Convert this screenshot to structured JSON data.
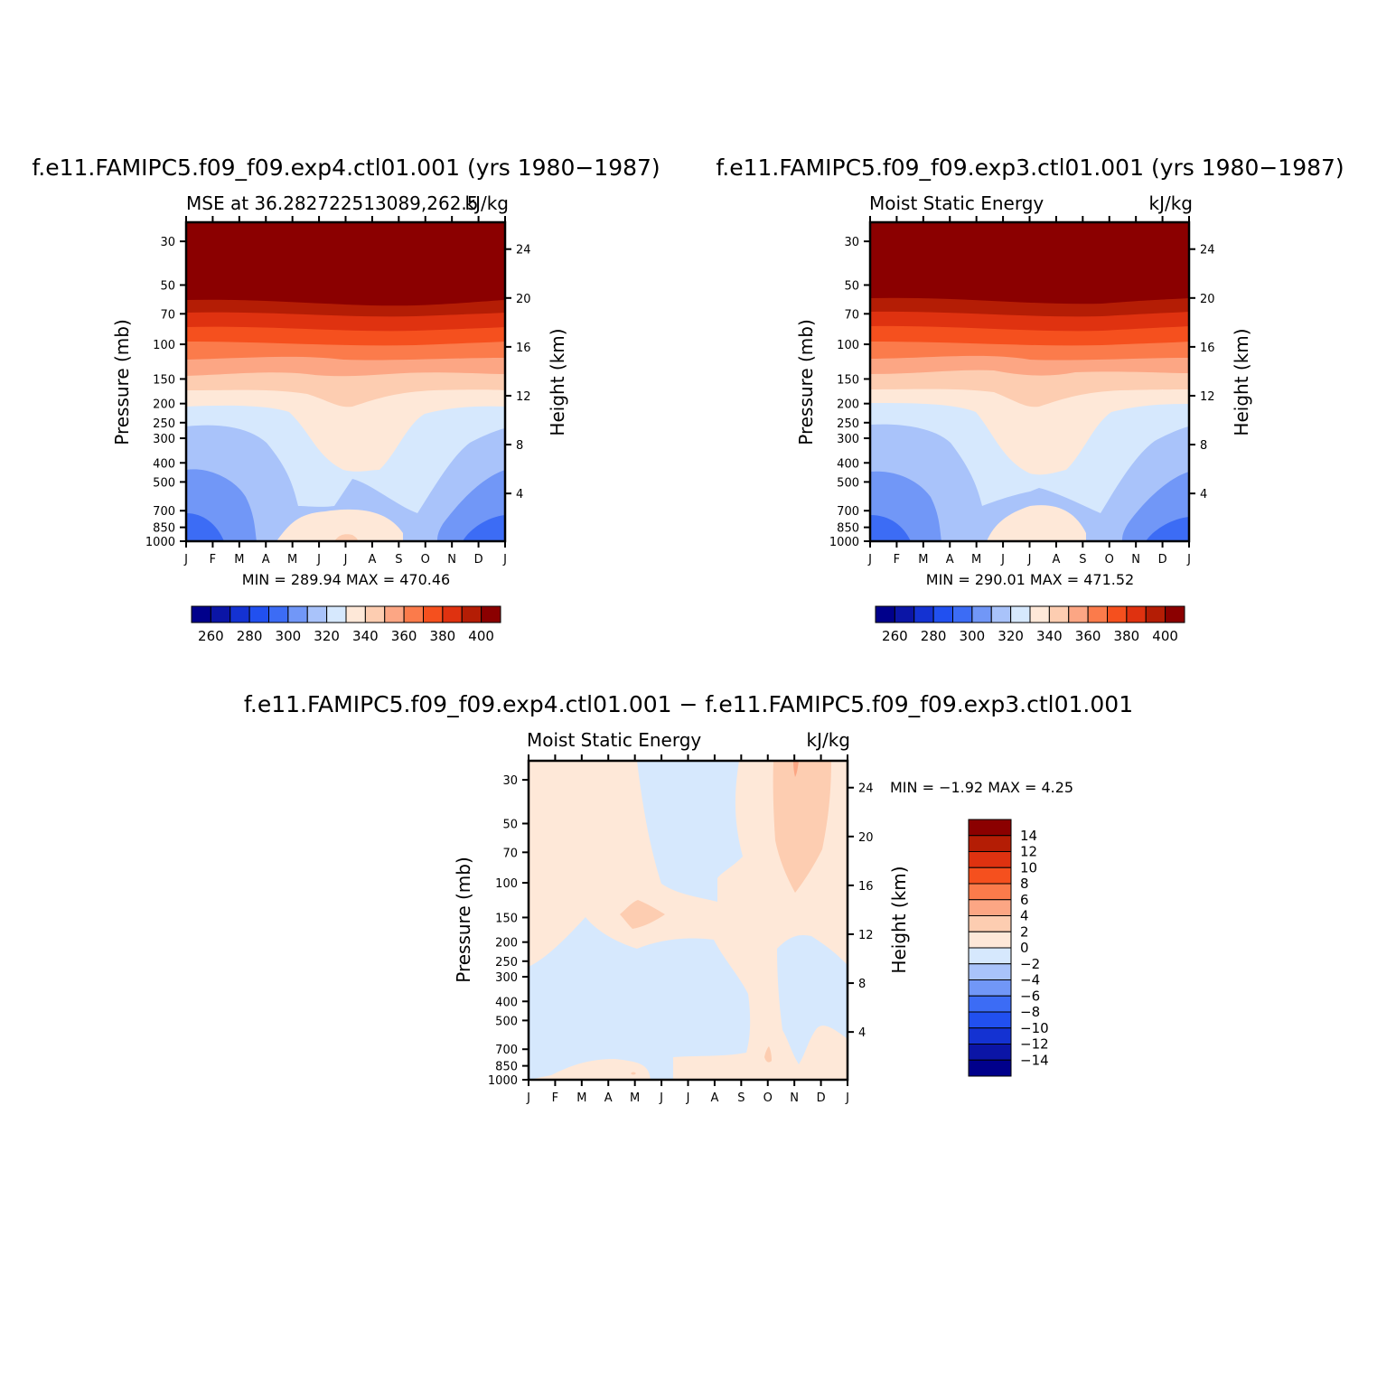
{
  "palette": {
    "absolute": [
      "#00008b",
      "#0b15a6",
      "#1432d2",
      "#2150f0",
      "#3c6cf5",
      "#7197f7",
      "#a9c3fa",
      "#d6e8fd",
      "#fee8d8",
      "#fdcdb1",
      "#fca684",
      "#fb7b4b",
      "#f5501e",
      "#df3210",
      "#b41d05",
      "#8b0000"
    ],
    "difference": [
      "#00008b",
      "#0b15a6",
      "#1432d2",
      "#2150f0",
      "#3c6cf5",
      "#7197f7",
      "#a9c3fa",
      "#d6e8fd",
      "#fee8d8",
      "#fdcdb1",
      "#fca684",
      "#fb7b4b",
      "#f5501e",
      "#df3210",
      "#b41d05",
      "#8b0000"
    ]
  },
  "chart_data": [
    {
      "type": "heatmap",
      "title": "f.e11.FAMIPC5.f09_f09.exp4.ctl01.001 (yrs 1980−1987)",
      "subtitle_left": "MSE at 36.282722513089,262.5",
      "subtitle_right": "kJ/kg",
      "ylabel": "Pressure (mb)",
      "ylabel_right": "Height (km)",
      "x_ticks": [
        "J",
        "F",
        "M",
        "A",
        "M",
        "J",
        "J",
        "A",
        "S",
        "O",
        "N",
        "D",
        "J"
      ],
      "y_ticks": [
        "30",
        "50",
        "70",
        "100",
        "150",
        "200",
        "250",
        "300",
        "400",
        "500",
        "700",
        "850",
        "1000"
      ],
      "y_ticks_right": [
        "24",
        "20",
        "16",
        "12",
        "8",
        "4"
      ],
      "stats": "MIN = 289.94  MAX = 470.46",
      "colorbar_labels": [
        "260",
        "280",
        "300",
        "320",
        "340",
        "360",
        "380",
        "400"
      ],
      "levels": [
        250,
        260,
        270,
        280,
        290,
        300,
        310,
        320,
        330,
        340,
        350,
        360,
        370,
        380,
        390,
        400
      ]
    },
    {
      "type": "heatmap",
      "title": "f.e11.FAMIPC5.f09_f09.exp3.ctl01.001 (yrs 1980−1987)",
      "subtitle_left": "Moist Static Energy",
      "subtitle_right": "kJ/kg",
      "ylabel": "Pressure (mb)",
      "ylabel_right": "Height (km)",
      "x_ticks": [
        "J",
        "F",
        "M",
        "A",
        "M",
        "J",
        "J",
        "A",
        "S",
        "O",
        "N",
        "D",
        "J"
      ],
      "y_ticks": [
        "30",
        "50",
        "70",
        "100",
        "150",
        "200",
        "250",
        "300",
        "400",
        "500",
        "700",
        "850",
        "1000"
      ],
      "y_ticks_right": [
        "24",
        "20",
        "16",
        "12",
        "8",
        "4"
      ],
      "stats": "MIN = 290.01  MAX = 471.52",
      "colorbar_labels": [
        "260",
        "280",
        "300",
        "320",
        "340",
        "360",
        "380",
        "400"
      ],
      "levels": [
        250,
        260,
        270,
        280,
        290,
        300,
        310,
        320,
        330,
        340,
        350,
        360,
        370,
        380,
        390,
        400
      ]
    },
    {
      "type": "heatmap",
      "title": "f.e11.FAMIPC5.f09_f09.exp4.ctl01.001 − f.e11.FAMIPC5.f09_f09.exp3.ctl01.001",
      "subtitle_left": "Moist Static Energy",
      "subtitle_right": "kJ/kg",
      "ylabel": "Pressure (mb)",
      "ylabel_right": "Height (km)",
      "x_ticks": [
        "J",
        "F",
        "M",
        "A",
        "M",
        "J",
        "J",
        "A",
        "S",
        "O",
        "N",
        "D",
        "J"
      ],
      "y_ticks": [
        "30",
        "50",
        "70",
        "100",
        "150",
        "200",
        "250",
        "300",
        "400",
        "500",
        "700",
        "850",
        "1000"
      ],
      "y_ticks_right": [
        "24",
        "20",
        "16",
        "12",
        "8",
        "4"
      ],
      "stats": "MIN =   −1.92  MAX =     4.25",
      "colorbar_labels": [
        "14",
        "12",
        "10",
        "8",
        "6",
        "4",
        "2",
        "0",
        "−2",
        "−4",
        "−6",
        "−8",
        "−10",
        "−12",
        "−14"
      ],
      "levels": [
        -14,
        -12,
        -10,
        -8,
        -6,
        -4,
        -2,
        0,
        2,
        4,
        6,
        8,
        10,
        12,
        14
      ]
    }
  ]
}
